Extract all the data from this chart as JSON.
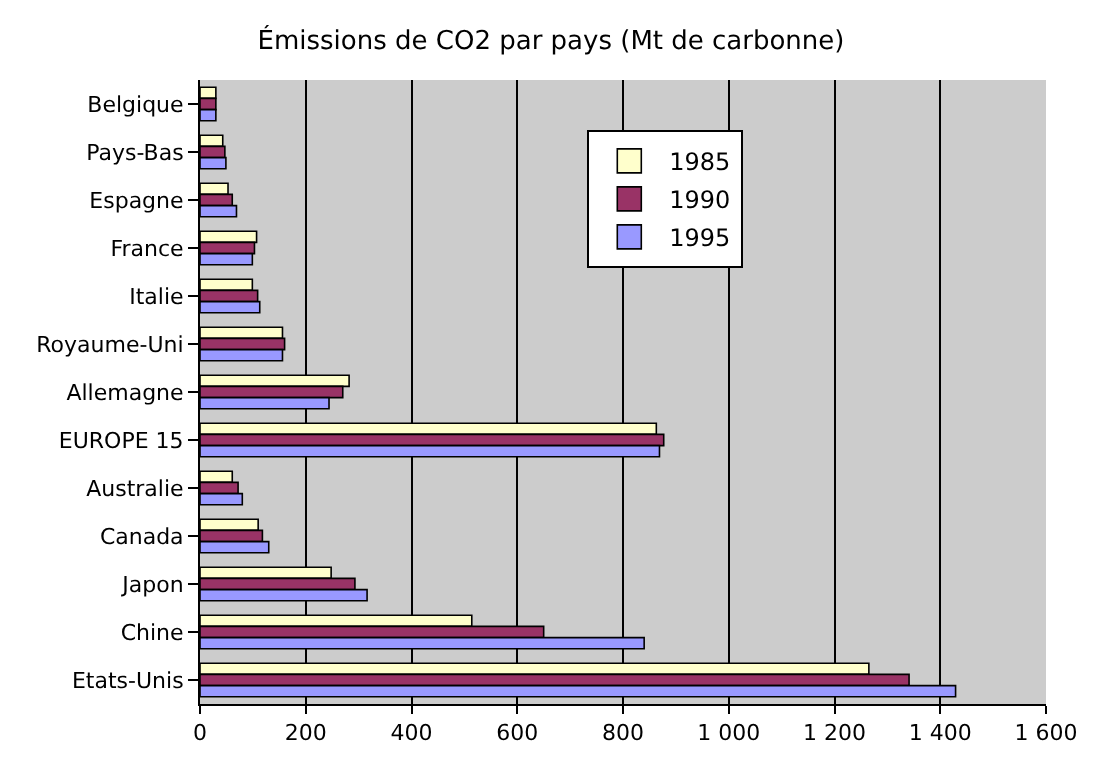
{
  "chart_data": {
    "type": "bar",
    "orientation": "horizontal",
    "title": "Émissions de CO2 par pays (Mt de carbonne)",
    "categories": [
      "Belgique",
      "Pays-Bas",
      "Espagne",
      "France",
      "Italie",
      "Royaume-Uni",
      "Allemagne",
      "EUROPE 15",
      "Australie",
      "Canada",
      "Japon",
      "Chine",
      "Etats-Unis"
    ],
    "series": [
      {
        "name": "1985",
        "color": "#ffffcc",
        "values": [
          30,
          43,
          53,
          107,
          99,
          156,
          282,
          863,
          61,
          110,
          248,
          514,
          1265
        ]
      },
      {
        "name": "1990",
        "color": "#993366",
        "values": [
          30,
          47,
          61,
          103,
          109,
          160,
          270,
          877,
          72,
          118,
          293,
          650,
          1341
        ]
      },
      {
        "name": "1995",
        "color": "#9999ff",
        "values": [
          30,
          49,
          69,
          99,
          113,
          156,
          244,
          869,
          80,
          130,
          316,
          840,
          1429
        ]
      }
    ],
    "xlim": [
      0,
      1600
    ],
    "xticks": [
      0,
      200,
      400,
      600,
      800,
      {
        "value": 1000,
        "label": "1 000"
      },
      {
        "value": 1200,
        "label": "1 200"
      },
      {
        "value": 1400,
        "label": "1 400"
      },
      {
        "value": 1600,
        "label": "1 600"
      }
    ],
    "grid": "x",
    "legend": "top"
  }
}
